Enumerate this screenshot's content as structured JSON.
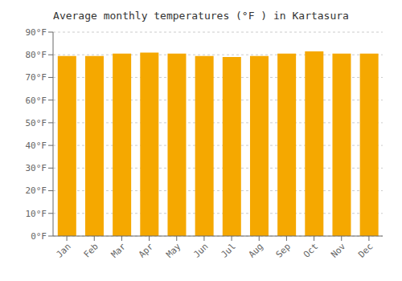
{
  "chart_data": {
    "type": "bar",
    "title": "Average monthly temperatures (°F ) in Kartasura",
    "categories": [
      "Jan",
      "Feb",
      "Mar",
      "Apr",
      "May",
      "Jun",
      "Jul",
      "Aug",
      "Sep",
      "Oct",
      "Nov",
      "Dec"
    ],
    "values": [
      79.5,
      79.5,
      80.5,
      81.0,
      80.5,
      79.5,
      79.0,
      79.5,
      80.5,
      81.5,
      80.5,
      80.5
    ],
    "color": "#F5A800",
    "ylim": [
      0,
      90
    ],
    "yticks": [
      {
        "value": 0,
        "label": "0°F"
      },
      {
        "value": 10,
        "label": "10°F"
      },
      {
        "value": 20,
        "label": "20°F"
      },
      {
        "value": 30,
        "label": "30°F"
      },
      {
        "value": 40,
        "label": "40°F"
      },
      {
        "value": 50,
        "label": "50°F"
      },
      {
        "value": 60,
        "label": "60°F"
      },
      {
        "value": 70,
        "label": "70°F"
      },
      {
        "value": 80,
        "label": "80°F"
      },
      {
        "value": 90,
        "label": "90°F"
      }
    ],
    "grid": true
  }
}
